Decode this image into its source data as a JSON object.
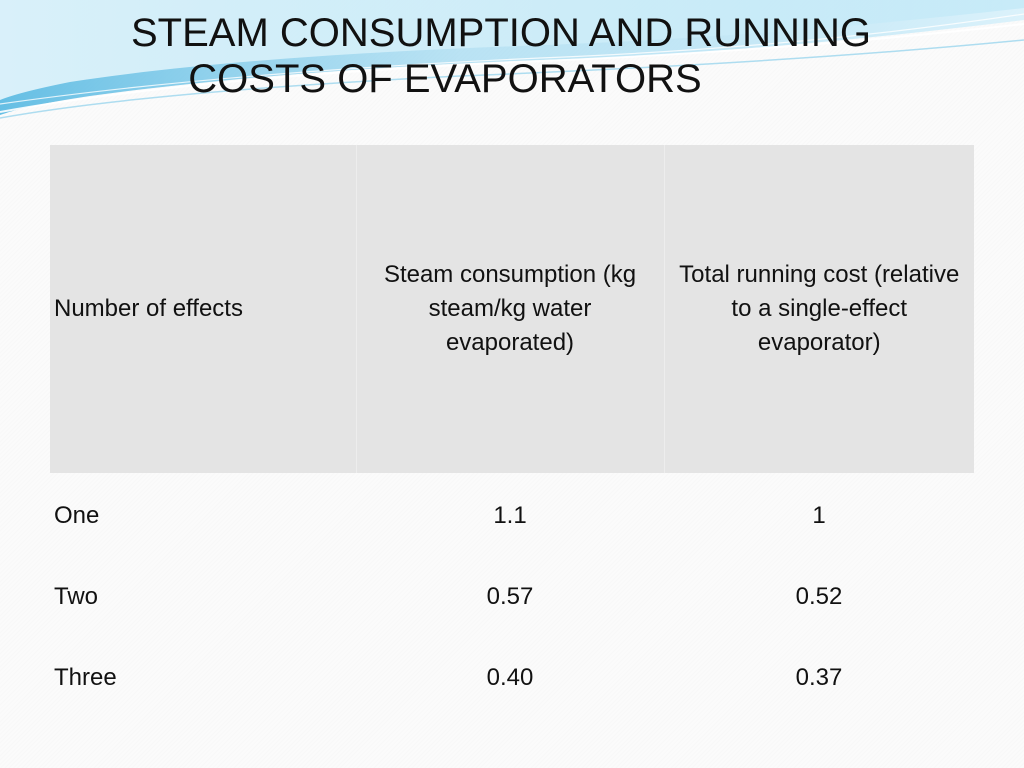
{
  "slide": {
    "title_line1": "STEAM CONSUMPTION  AND RUNNING",
    "title_line2": "COSTS OF EVAPORATORS"
  },
  "table": {
    "headers": [
      "Number of effects",
      "Steam consumption (kg steam/kg water evaporated)",
      "Total running cost (relative to a single-effect evaporator)"
    ],
    "rows": [
      [
        "One",
        "1.1",
        "1"
      ],
      [
        "Two",
        "0.57",
        "0.52"
      ],
      [
        "Three",
        "0.40",
        "0.37"
      ]
    ]
  },
  "colors": {
    "header_background": "#e4e4e4",
    "wave_light": "#d8f1fb",
    "wave_mid": "#8fd3ef",
    "wave_dark": "#4bb4e0"
  }
}
